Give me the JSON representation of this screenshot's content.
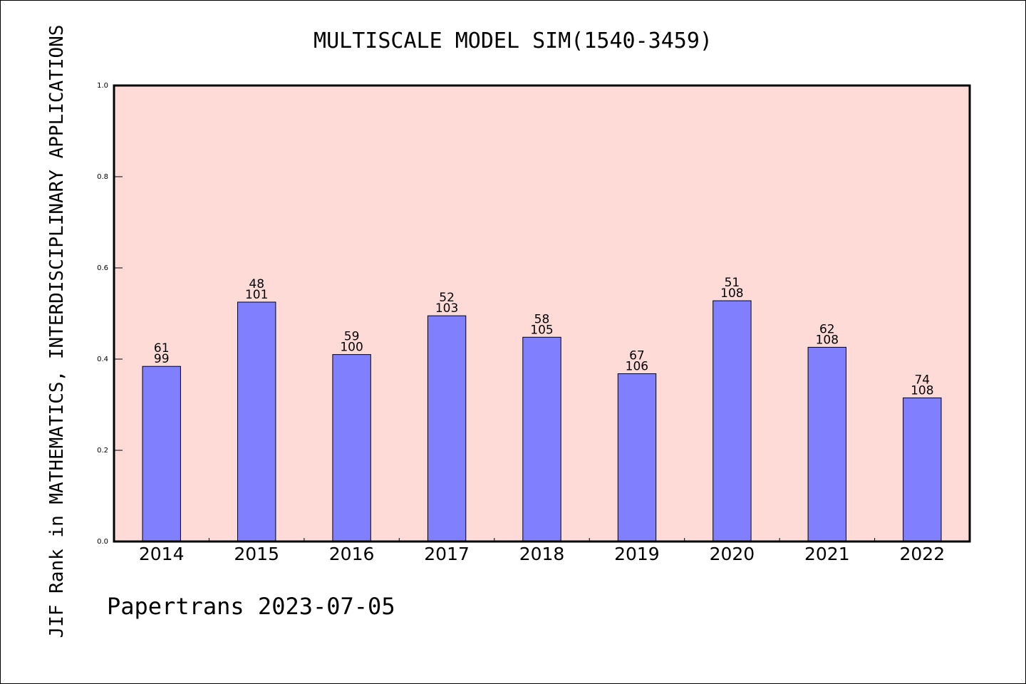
{
  "chart_data": {
    "type": "bar",
    "title": "MULTISCALE MODEL SIM(1540-3459)",
    "xlabel": "",
    "ylabel": "JIF Rank in MATHEMATICS, INTERDISCIPLINARY APPLICATIONS",
    "categories": [
      "2014",
      "2015",
      "2016",
      "2017",
      "2018",
      "2019",
      "2020",
      "2021",
      "2022"
    ],
    "values": [
      0.384,
      0.525,
      0.41,
      0.495,
      0.448,
      0.368,
      0.528,
      0.426,
      0.315
    ],
    "rank": [
      "61",
      "48",
      "59",
      "52",
      "58",
      "67",
      "51",
      "62",
      "74"
    ],
    "total": [
      "99",
      "101",
      "100",
      "103",
      "105",
      "106",
      "108",
      "108",
      "108"
    ],
    "ylim": [
      0,
      1.0
    ],
    "yticks": [
      "0.0",
      "0.2",
      "0.4",
      "0.6",
      "0.8",
      "1.0"
    ],
    "grid": false,
    "legend": "none",
    "colors": {
      "bar_fill": "#8080ff",
      "bar_stroke": "#000000",
      "plot_background": "#ffdbd8"
    }
  },
  "footer": "Papertrans 2023-07-05"
}
